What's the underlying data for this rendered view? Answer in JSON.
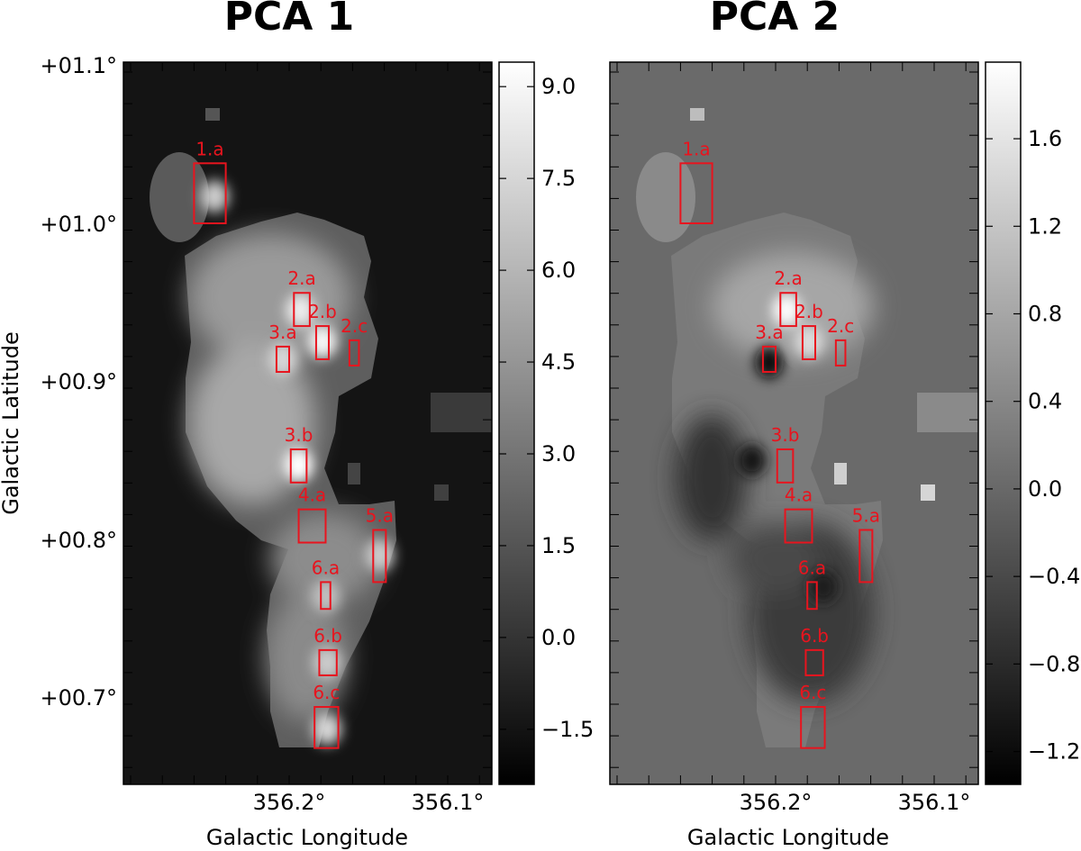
{
  "chart_data": [
    {
      "type": "heatmap",
      "title": "PCA 1",
      "xlabel": "Galactic Longitude",
      "ylabel": "Galactic Latitude",
      "xticks": [
        "356.2°",
        "356.1°"
      ],
      "yticks": [
        "+01.1°",
        "+01.0°",
        "+00.9°",
        "+00.8°",
        "+00.7°"
      ],
      "colorbar_ticks": [
        "9.0",
        "7.5",
        "6.0",
        "4.5",
        "3.0",
        "1.5",
        "0.0",
        "−1.5"
      ],
      "colorbar_range": [
        -2.4,
        9.4
      ],
      "colormap": "gray",
      "background_value": -1.7,
      "regions": [
        {
          "label": "1.a",
          "l_range": [
            356.26,
            356.24
          ],
          "b_range": [
            1.0,
            1.038
          ]
        },
        {
          "label": "2.a",
          "l_range": [
            356.197,
            356.187
          ],
          "b_range": [
            0.935,
            0.956
          ]
        },
        {
          "label": "2.b",
          "l_range": [
            356.183,
            356.175
          ],
          "b_range": [
            0.914,
            0.935
          ]
        },
        {
          "label": "2.c",
          "l_range": [
            356.162,
            356.156
          ],
          "b_range": [
            0.91,
            0.926
          ]
        },
        {
          "label": "3.a",
          "l_range": [
            356.208,
            356.2
          ],
          "b_range": [
            0.906,
            0.922
          ]
        },
        {
          "label": "3.b",
          "l_range": [
            356.199,
            356.189
          ],
          "b_range": [
            0.836,
            0.857
          ]
        },
        {
          "label": "4.a",
          "l_range": [
            356.194,
            356.177
          ],
          "b_range": [
            0.798,
            0.819
          ]
        },
        {
          "label": "5.a",
          "l_range": [
            356.147,
            356.139
          ],
          "b_range": [
            0.773,
            0.806
          ]
        },
        {
          "label": "6.a",
          "l_range": [
            356.18,
            356.174
          ],
          "b_range": [
            0.756,
            0.773
          ]
        },
        {
          "label": "6.b",
          "l_range": [
            356.181,
            356.17
          ],
          "b_range": [
            0.714,
            0.73
          ]
        },
        {
          "label": "6.c",
          "l_range": [
            356.184,
            356.169
          ],
          "b_range": [
            0.668,
            0.694
          ]
        }
      ],
      "emission_peaks": [
        {
          "l": 356.247,
          "b": 1.017,
          "value": 7.0
        },
        {
          "l": 356.193,
          "b": 0.945,
          "value": 8.5
        },
        {
          "l": 356.179,
          "b": 0.925,
          "value": 9.0
        },
        {
          "l": 356.204,
          "b": 0.914,
          "value": 7.5
        },
        {
          "l": 356.194,
          "b": 0.847,
          "value": 9.4
        },
        {
          "l": 356.143,
          "b": 0.79,
          "value": 7.0
        },
        {
          "l": 356.177,
          "b": 0.764,
          "value": 6.5
        },
        {
          "l": 356.176,
          "b": 0.722,
          "value": 7.0
        },
        {
          "l": 356.176,
          "b": 0.68,
          "value": 7.5
        }
      ]
    },
    {
      "type": "heatmap",
      "title": "PCA 2",
      "xlabel": "Galactic Longitude",
      "ylabel": "",
      "xticks": [
        "356.2°",
        "356.1°"
      ],
      "yticks": [],
      "colorbar_ticks": [
        "1.6",
        "1.2",
        "0.8",
        "0.4",
        "0.0",
        "−0.4",
        "−0.8",
        "−1.2"
      ],
      "colorbar_range": [
        -1.35,
        1.95
      ],
      "colormap": "gray",
      "background_value": -0.05,
      "regions": [
        {
          "label": "1.a",
          "l_range": [
            356.26,
            356.24
          ],
          "b_range": [
            1.0,
            1.038
          ]
        },
        {
          "label": "2.a",
          "l_range": [
            356.197,
            356.187
          ],
          "b_range": [
            0.935,
            0.956
          ]
        },
        {
          "label": "2.b",
          "l_range": [
            356.183,
            356.175
          ],
          "b_range": [
            0.914,
            0.935
          ]
        },
        {
          "label": "2.c",
          "l_range": [
            356.162,
            356.156
          ],
          "b_range": [
            0.91,
            0.926
          ]
        },
        {
          "label": "3.a",
          "l_range": [
            356.208,
            356.2
          ],
          "b_range": [
            0.906,
            0.922
          ]
        },
        {
          "label": "3.b",
          "l_range": [
            356.199,
            356.189
          ],
          "b_range": [
            0.836,
            0.857
          ]
        },
        {
          "label": "4.a",
          "l_range": [
            356.194,
            356.177
          ],
          "b_range": [
            0.798,
            0.819
          ]
        },
        {
          "label": "5.a",
          "l_range": [
            356.147,
            356.139
          ],
          "b_range": [
            0.773,
            0.806
          ]
        },
        {
          "label": "6.a",
          "l_range": [
            356.18,
            356.174
          ],
          "b_range": [
            0.756,
            0.773
          ]
        },
        {
          "label": "6.b",
          "l_range": [
            356.181,
            356.17
          ],
          "b_range": [
            0.714,
            0.73
          ]
        },
        {
          "label": "6.c",
          "l_range": [
            356.184,
            356.169
          ],
          "b_range": [
            0.668,
            0.694
          ]
        }
      ],
      "emission_peaks": [
        {
          "l": 356.193,
          "b": 0.945,
          "value": 1.9
        },
        {
          "l": 356.179,
          "b": 0.925,
          "value": 1.5
        },
        {
          "l": 356.204,
          "b": 0.912,
          "value": -1.2
        },
        {
          "l": 356.215,
          "b": 0.85,
          "value": -1.1
        },
        {
          "l": 356.17,
          "b": 0.77,
          "value": -1.0
        }
      ]
    }
  ],
  "colors": {
    "region_box": "#e8141e",
    "frame": "#000000"
  }
}
